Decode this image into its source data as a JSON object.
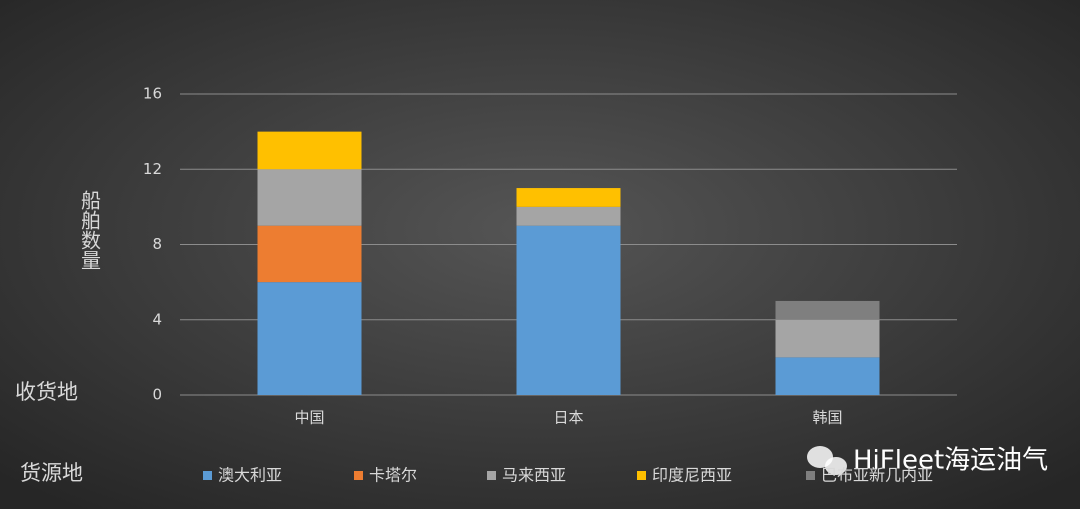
{
  "chart_data": {
    "type": "stacked_bar",
    "y_label": "船舶数量",
    "x_label": "收货地",
    "legend_title": "货源地",
    "watermark": "HiFleet海运油气",
    "categories": [
      "中国",
      "日本",
      "韩国"
    ],
    "series": [
      {
        "name": "澳大利亚",
        "color": "#5b9bd5",
        "values": [
          6,
          9,
          2
        ]
      },
      {
        "name": "卡塔尔",
        "color": "#ed7d31",
        "values": [
          3,
          0,
          0
        ]
      },
      {
        "name": "马来西亚",
        "color": "#a5a5a5",
        "values": [
          3,
          1,
          2
        ]
      },
      {
        "name": "印度尼西亚",
        "color": "#ffc000",
        "values": [
          2,
          1,
          0
        ]
      },
      {
        "name": "巴布亚新几内亚",
        "color": "#7f7f7f",
        "values": [
          0,
          0,
          1
        ]
      }
    ],
    "ylim": [
      0,
      16
    ],
    "yticks": [
      0,
      4,
      8,
      12,
      16
    ],
    "grid": true,
    "legend": "bottom"
  }
}
